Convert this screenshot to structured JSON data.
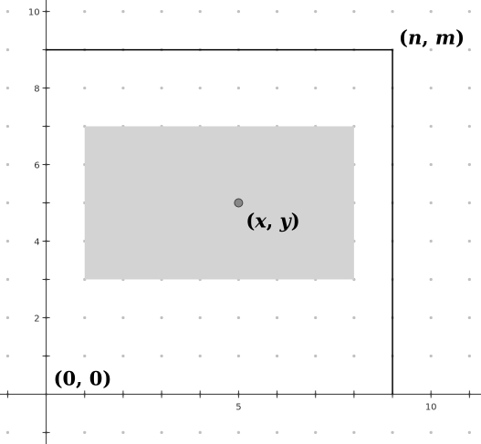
{
  "colors": {
    "background": "#ffffff",
    "grid_dot": "#c0c0c0",
    "axis": "#333333",
    "outer_rect": "#000000",
    "shaded_rect": "#d3d3d3",
    "point_fill": "#888888",
    "point_stroke": "#444444"
  },
  "axes": {
    "x_range": [
      -1.2,
      11.3
    ],
    "y_range": [
      -1.3,
      10.3
    ],
    "x_tick_labels": [
      "5",
      "10"
    ],
    "y_tick_labels": [
      "2",
      "4",
      "6",
      "8",
      "10"
    ]
  },
  "outer_rectangle": {
    "x0": 0,
    "y0": 0,
    "x1": 9,
    "y1": 9
  },
  "inner_rectangle": {
    "x0": 1,
    "y0": 3,
    "x1": 8,
    "y1": 7
  },
  "point": {
    "x": 5,
    "y": 5
  },
  "labels": {
    "origin": {
      "open": "(",
      "a": "0",
      "sep": ", ",
      "b": "0",
      "close": ")"
    },
    "corner": {
      "open": "(",
      "a": "n",
      "sep": ", ",
      "b": "m",
      "close": ")"
    },
    "point": {
      "open": "(",
      "a": "x",
      "sep": ", ",
      "b": "y",
      "close": ")"
    }
  }
}
